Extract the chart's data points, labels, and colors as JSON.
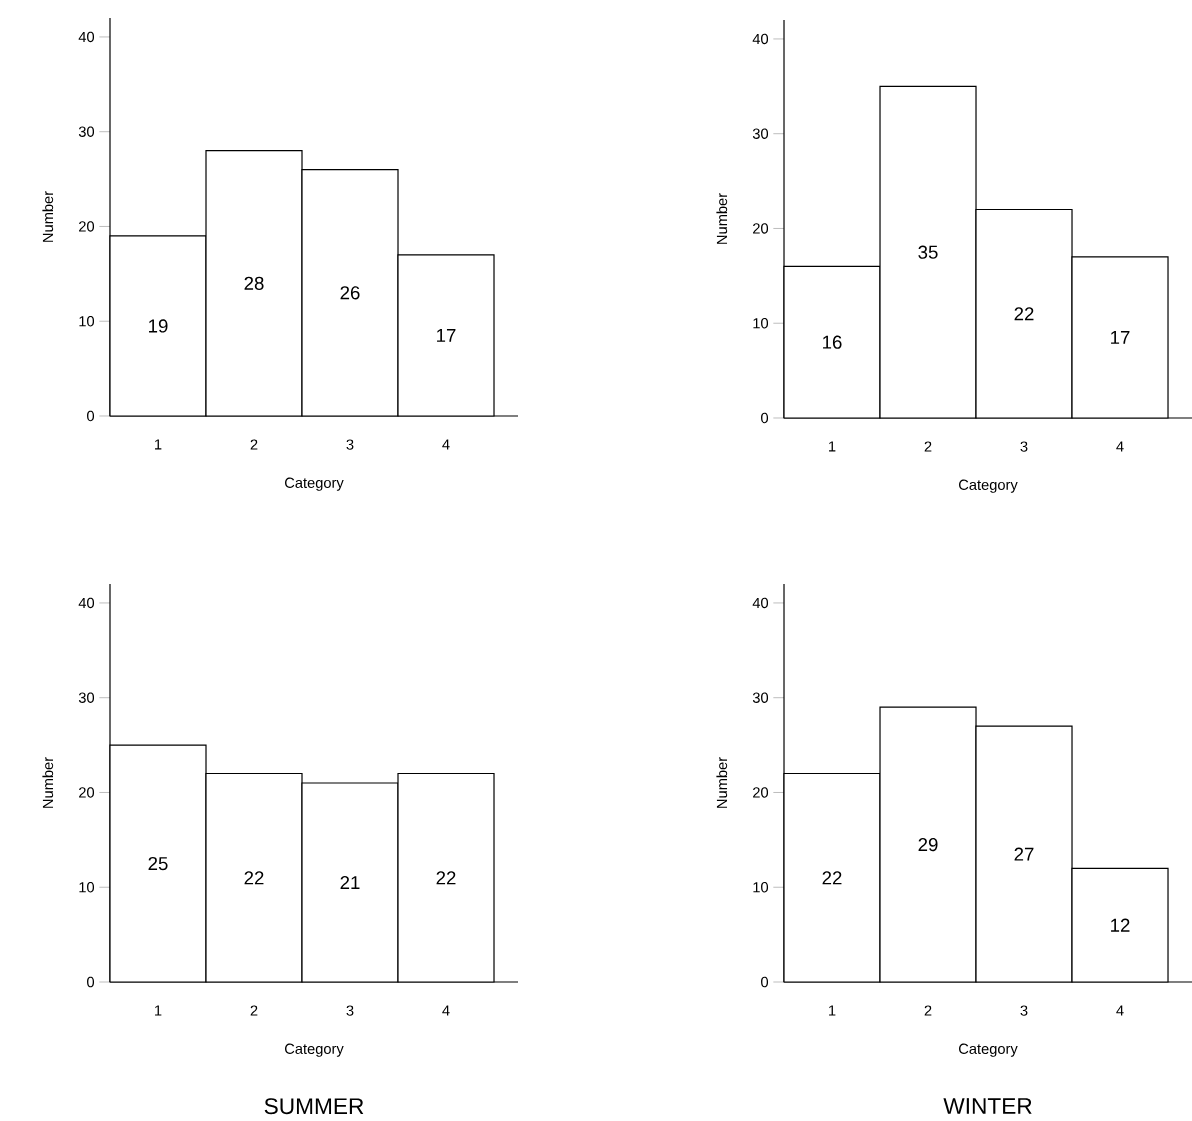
{
  "chart_data": [
    {
      "type": "bar",
      "categories": [
        "1",
        "2",
        "3",
        "4"
      ],
      "values": [
        19,
        28,
        26,
        17
      ],
      "color": "#ffffff",
      "xlabel": "Category",
      "ylabel": "Number",
      "ylim": [
        0,
        42
      ],
      "yticks": [
        0,
        10,
        20,
        30,
        40
      ],
      "data_labels": true
    },
    {
      "type": "bar",
      "categories": [
        "1",
        "2",
        "3",
        "4"
      ],
      "values": [
        16,
        35,
        22,
        17
      ],
      "color": "#ffffff",
      "xlabel": "Category",
      "ylabel": "Number",
      "ylim": [
        0,
        42
      ],
      "yticks": [
        0,
        10,
        20,
        30,
        40
      ],
      "data_labels": true
    },
    {
      "type": "bar",
      "categories": [
        "1",
        "2",
        "3",
        "4"
      ],
      "values": [
        25,
        22,
        21,
        22
      ],
      "color": "#ffffff",
      "xlabel": "Category",
      "ylabel": "Number",
      "ylim": [
        0,
        42
      ],
      "yticks": [
        0,
        10,
        20,
        30,
        40
      ],
      "data_labels": true,
      "annotations": [
        "SUMMER"
      ]
    },
    {
      "type": "bar",
      "categories": [
        "1",
        "2",
        "3",
        "4"
      ],
      "values": [
        22,
        29,
        27,
        12
      ],
      "color": "#ffffff",
      "xlabel": "Category",
      "ylabel": "Number",
      "ylim": [
        0,
        42
      ],
      "yticks": [
        0,
        10,
        20,
        30,
        40
      ],
      "data_labels": true,
      "annotations": [
        "WINTER"
      ]
    }
  ]
}
